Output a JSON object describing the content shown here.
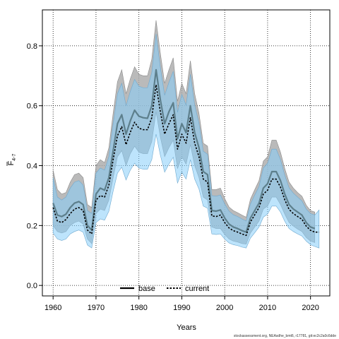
{
  "chart_data": {
    "type": "line",
    "xlabel": "Years",
    "ylabel_main": "F",
    "ylabel_sub": "4-7",
    "xlim": [
      1957.5,
      2024.5
    ],
    "ylim": [
      -0.035,
      0.92
    ],
    "xticks": [
      1960,
      1970,
      1980,
      1990,
      2000,
      2010,
      2020
    ],
    "yticks": [
      0.0,
      0.2,
      0.4,
      0.6,
      0.8
    ],
    "ytick_labels": [
      "0.0",
      "0.2",
      "0.4",
      "0.6",
      "0.8"
    ],
    "grid": true,
    "legend_position": "bottom-center",
    "footnote": "stockassessment.org, NEAsdhe_bmt6, r17781, git:ec2c2a0c6dde",
    "colors": {
      "base_band": "#a6a6a6",
      "current_band": "#87cefa",
      "base_line": "#000000",
      "current_line": "#000000"
    },
    "series": [
      {
        "name": "base",
        "start_year": 1960,
        "end_year": 2021,
        "values": [
          0.275,
          0.235,
          0.23,
          0.238,
          0.26,
          0.275,
          0.28,
          0.27,
          0.2,
          0.185,
          0.305,
          0.325,
          0.318,
          0.36,
          0.45,
          0.54,
          0.57,
          0.505,
          0.55,
          0.585,
          0.565,
          0.56,
          0.558,
          0.6,
          0.72,
          0.62,
          0.54,
          0.58,
          0.61,
          0.49,
          0.54,
          0.51,
          0.6,
          0.51,
          0.46,
          0.38,
          0.37,
          0.25,
          0.248,
          0.252,
          0.225,
          0.205,
          0.195,
          0.19,
          0.183,
          0.178,
          0.225,
          0.25,
          0.275,
          0.325,
          0.34,
          0.38,
          0.38,
          0.35,
          0.305,
          0.27,
          0.255,
          0.245,
          0.235,
          0.21,
          0.195,
          0.19
        ],
        "lower": [
          0.2,
          0.18,
          0.175,
          0.18,
          0.2,
          0.21,
          0.215,
          0.205,
          0.155,
          0.14,
          0.24,
          0.255,
          0.25,
          0.285,
          0.36,
          0.43,
          0.45,
          0.4,
          0.44,
          0.465,
          0.445,
          0.44,
          0.44,
          0.48,
          0.58,
          0.495,
          0.43,
          0.46,
          0.485,
          0.39,
          0.43,
          0.405,
          0.47,
          0.4,
          0.36,
          0.295,
          0.285,
          0.195,
          0.19,
          0.19,
          0.17,
          0.155,
          0.148,
          0.145,
          0.14,
          0.138,
          0.175,
          0.195,
          0.215,
          0.255,
          0.265,
          0.295,
          0.295,
          0.27,
          0.238,
          0.21,
          0.198,
          0.188,
          0.18,
          0.16,
          0.148,
          0.143
        ],
        "upper": [
          0.385,
          0.32,
          0.305,
          0.31,
          0.345,
          0.37,
          0.375,
          0.36,
          0.27,
          0.26,
          0.4,
          0.42,
          0.41,
          0.46,
          0.575,
          0.68,
          0.72,
          0.64,
          0.69,
          0.73,
          0.705,
          0.7,
          0.7,
          0.755,
          0.885,
          0.775,
          0.675,
          0.72,
          0.76,
          0.615,
          0.675,
          0.64,
          0.75,
          0.64,
          0.575,
          0.475,
          0.465,
          0.32,
          0.32,
          0.325,
          0.29,
          0.262,
          0.25,
          0.243,
          0.235,
          0.228,
          0.288,
          0.32,
          0.35,
          0.415,
          0.43,
          0.485,
          0.485,
          0.445,
          0.39,
          0.345,
          0.325,
          0.31,
          0.298,
          0.268,
          0.25,
          0.245
        ]
      },
      {
        "name": "current",
        "start_year": 1960,
        "end_year": 2022,
        "values": [
          0.26,
          0.215,
          0.21,
          0.22,
          0.24,
          0.255,
          0.26,
          0.25,
          0.185,
          0.172,
          0.285,
          0.3,
          0.295,
          0.335,
          0.42,
          0.5,
          0.53,
          0.47,
          0.512,
          0.545,
          0.525,
          0.52,
          0.52,
          0.56,
          0.67,
          0.58,
          0.505,
          0.54,
          0.57,
          0.455,
          0.505,
          0.475,
          0.56,
          0.475,
          0.43,
          0.355,
          0.345,
          0.232,
          0.23,
          0.235,
          0.21,
          0.192,
          0.183,
          0.178,
          0.172,
          0.167,
          0.212,
          0.236,
          0.26,
          0.305,
          0.318,
          0.355,
          0.355,
          0.328,
          0.286,
          0.254,
          0.24,
          0.23,
          0.221,
          0.198,
          0.184,
          0.178,
          0.178
        ],
        "lower": [
          0.175,
          0.155,
          0.15,
          0.155,
          0.172,
          0.18,
          0.185,
          0.178,
          0.135,
          0.125,
          0.21,
          0.222,
          0.218,
          0.248,
          0.315,
          0.375,
          0.395,
          0.352,
          0.385,
          0.408,
          0.392,
          0.388,
          0.388,
          0.42,
          0.505,
          0.435,
          0.378,
          0.405,
          0.428,
          0.342,
          0.378,
          0.355,
          0.42,
          0.355,
          0.322,
          0.265,
          0.258,
          0.172,
          0.17,
          0.172,
          0.155,
          0.142,
          0.136,
          0.133,
          0.128,
          0.125,
          0.158,
          0.176,
          0.195,
          0.228,
          0.238,
          0.265,
          0.265,
          0.245,
          0.214,
          0.19,
          0.18,
          0.172,
          0.165,
          0.148,
          0.136,
          0.13,
          0.125
        ],
        "upper": [
          0.36,
          0.295,
          0.285,
          0.295,
          0.325,
          0.345,
          0.35,
          0.335,
          0.25,
          0.24,
          0.375,
          0.392,
          0.385,
          0.43,
          0.54,
          0.64,
          0.675,
          0.6,
          0.648,
          0.688,
          0.665,
          0.66,
          0.66,
          0.71,
          0.84,
          0.728,
          0.635,
          0.678,
          0.715,
          0.578,
          0.638,
          0.602,
          0.705,
          0.602,
          0.542,
          0.448,
          0.438,
          0.3,
          0.298,
          0.302,
          0.272,
          0.248,
          0.236,
          0.23,
          0.222,
          0.215,
          0.272,
          0.302,
          0.33,
          0.392,
          0.408,
          0.455,
          0.455,
          0.42,
          0.368,
          0.326,
          0.308,
          0.295,
          0.282,
          0.255,
          0.24,
          0.235,
          0.252
        ]
      }
    ]
  }
}
